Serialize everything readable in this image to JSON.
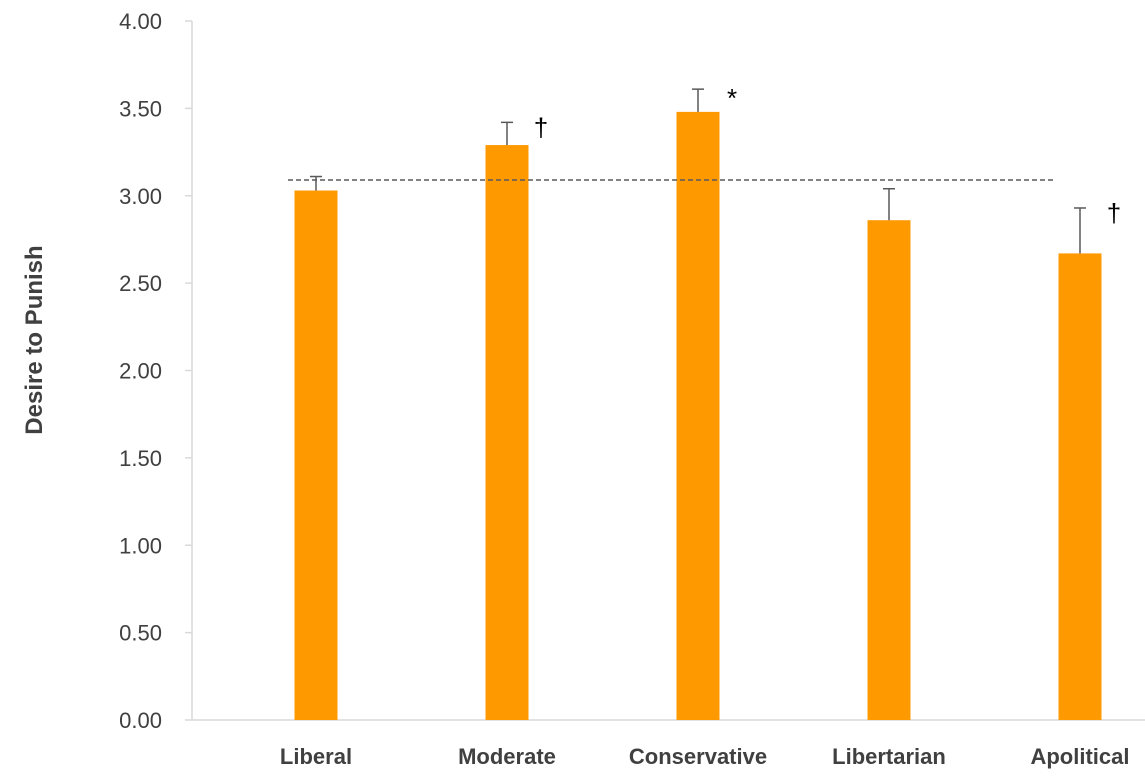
{
  "chart_data": {
    "type": "bar",
    "ylabel": "Desire to Punish",
    "xlabel": "",
    "ylim": [
      0,
      4
    ],
    "yticks": [
      "0.00",
      "0.50",
      "1.00",
      "1.50",
      "2.00",
      "2.50",
      "3.00",
      "3.50",
      "4.00"
    ],
    "ytick_values": [
      0,
      0.5,
      1,
      1.5,
      2,
      2.5,
      3,
      3.5,
      4
    ],
    "categories": [
      "Liberal",
      "Moderate",
      "Conservative",
      "Libertarian",
      "Apolitical"
    ],
    "values": [
      3.03,
      3.29,
      3.48,
      2.86,
      2.67
    ],
    "error_upper": [
      0.08,
      0.13,
      0.13,
      0.18,
      0.26
    ],
    "annotations": [
      "",
      "†",
      "*",
      "",
      "†"
    ],
    "reference_line": 3.09,
    "bar_color": "#FF9900",
    "axis_color": "#D9D9D9",
    "error_color": "#595959",
    "reference_line_color": "#595959",
    "grid": false,
    "legend": "none"
  }
}
